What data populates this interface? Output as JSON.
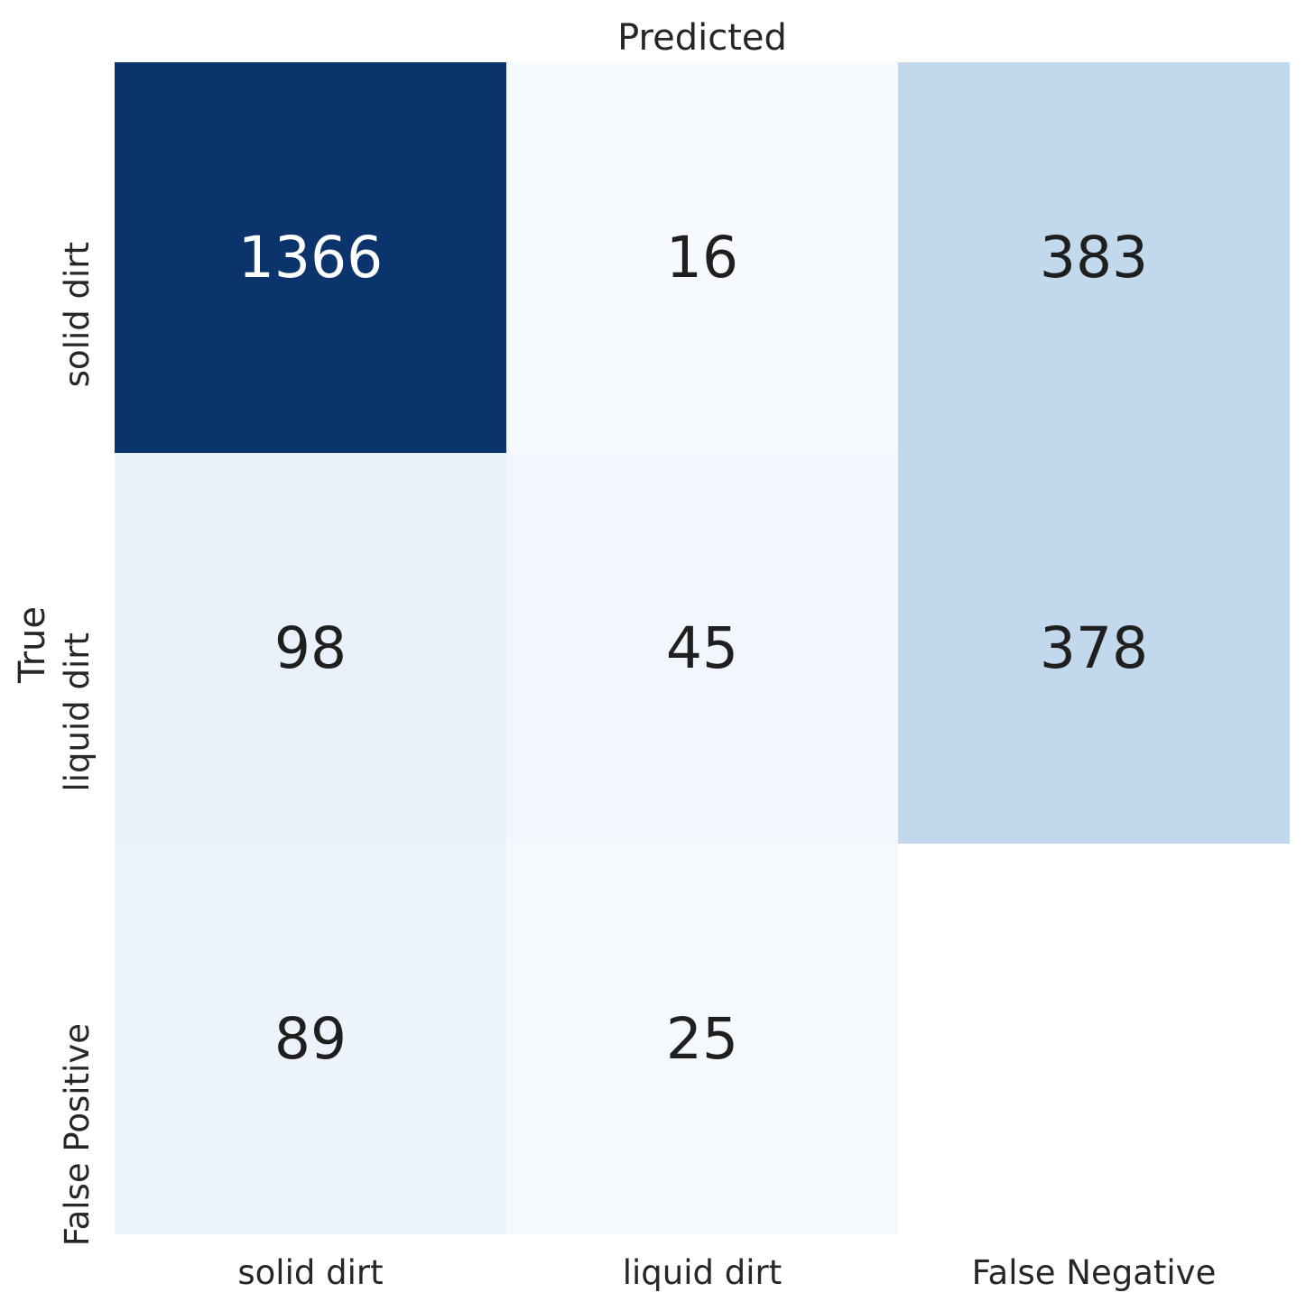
{
  "chart_data": {
    "type": "heatmap",
    "title": "Predicted",
    "xlabel": "",
    "ylabel": "True",
    "x_categories": [
      "solid dirt",
      "liquid dirt",
      "False Negative"
    ],
    "y_categories": [
      "solid dirt",
      "liquid dirt",
      "False Positive"
    ],
    "values": [
      [
        1366,
        16,
        383
      ],
      [
        98,
        45,
        378
      ],
      [
        89,
        25,
        null
      ]
    ],
    "cell_colors": [
      [
        "#0b336c",
        "#f6faff",
        "#c2d8ec"
      ],
      [
        "#e9f1fa",
        "#f1f7fd",
        "#c2d8ec"
      ],
      [
        "#edf3fb",
        "#f4f9fe",
        "#ffffff"
      ]
    ],
    "text_colors": [
      [
        "#ffffff",
        "#1f1f1f",
        "#1f1f1f"
      ],
      [
        "#1f1f1f",
        "#1f1f1f",
        "#1f1f1f"
      ],
      [
        "#1f1f1f",
        "#1f1f1f",
        "#1f1f1f"
      ]
    ],
    "colormap": "Blues",
    "colorbar": false,
    "grid_lines": false,
    "background_color": "#ffffff",
    "axis_text_color": "#262626"
  }
}
